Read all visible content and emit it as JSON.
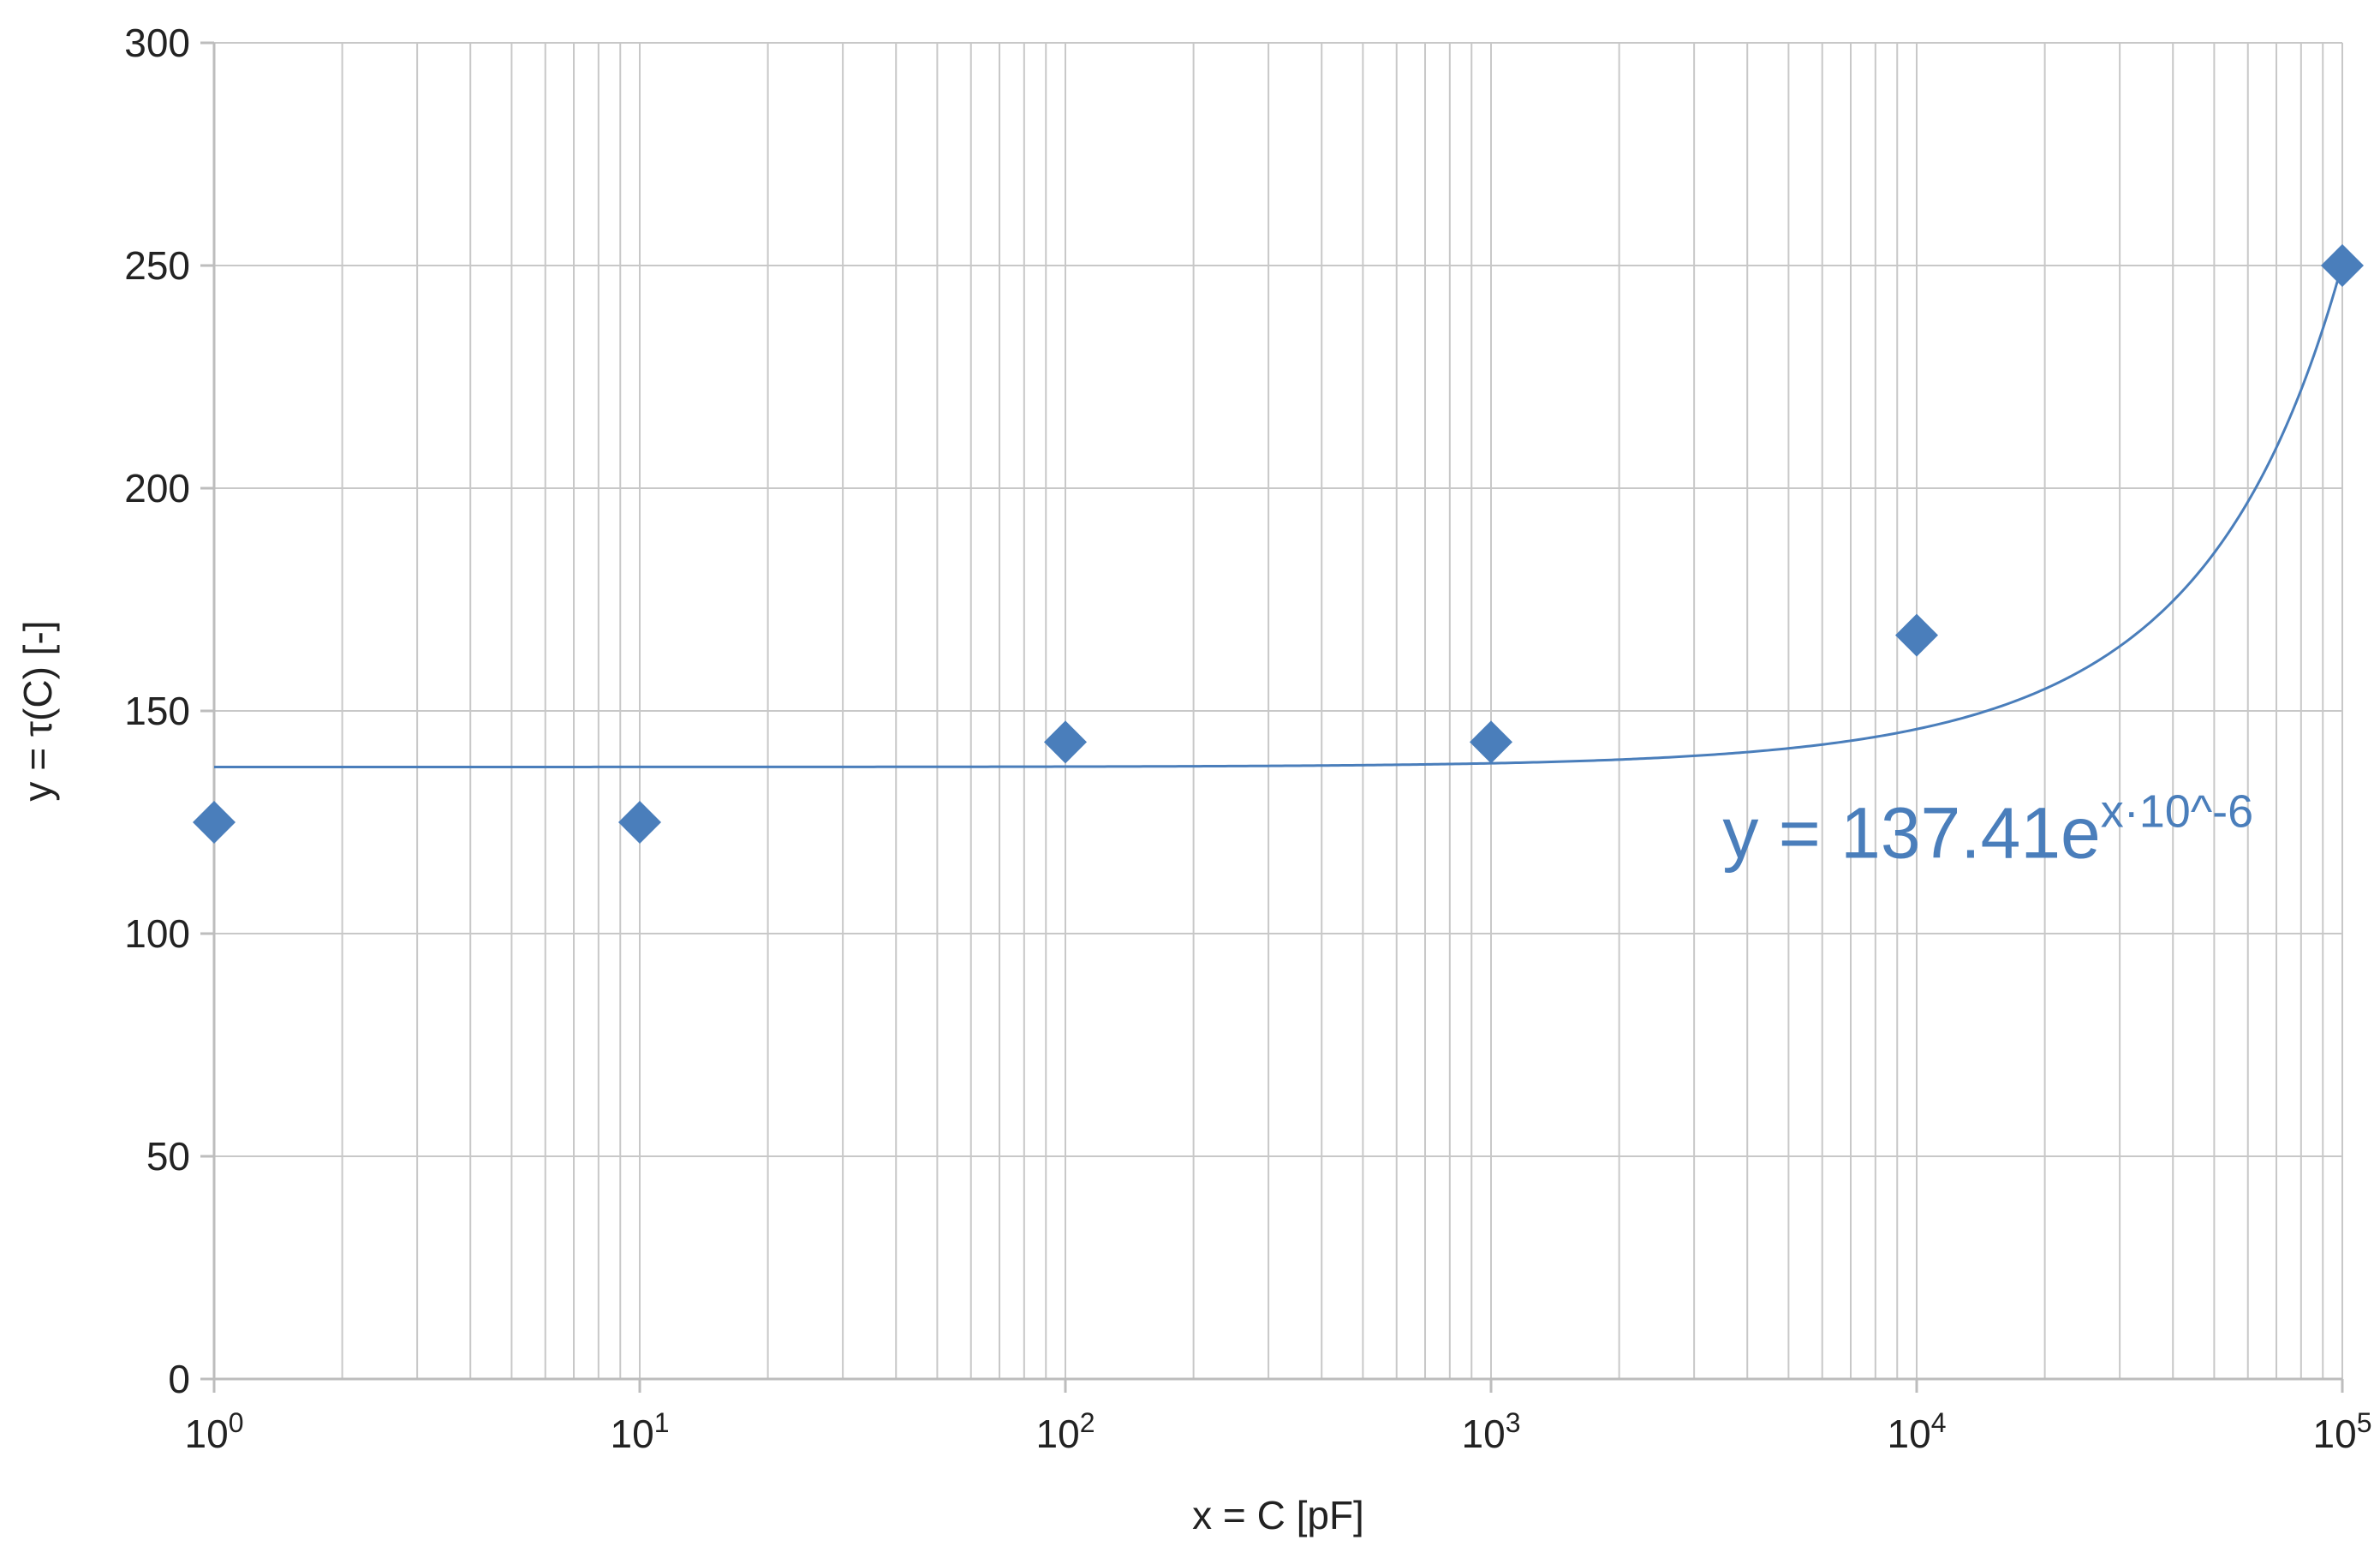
{
  "chart_data": {
    "type": "scatter",
    "x_scale": "log",
    "y_scale": "linear",
    "grid": true,
    "xlabel": "x = C [pF]",
    "ylabel": "y = τ(C) [-]",
    "xlim": [
      1,
      100000
    ],
    "ylim": [
      0,
      300
    ],
    "x_ticks": [
      {
        "value": 1,
        "base": "10",
        "exp": "0"
      },
      {
        "value": 10,
        "base": "10",
        "exp": "1"
      },
      {
        "value": 100,
        "base": "10",
        "exp": "2"
      },
      {
        "value": 1000,
        "base": "10",
        "exp": "3"
      },
      {
        "value": 10000,
        "base": "10",
        "exp": "4"
      },
      {
        "value": 100000,
        "base": "10",
        "exp": "5"
      }
    ],
    "y_ticks": [
      {
        "value": 0,
        "label": "0"
      },
      {
        "value": 50,
        "label": "50"
      },
      {
        "value": 100,
        "label": "100"
      },
      {
        "value": 150,
        "label": "150"
      },
      {
        "value": 200,
        "label": "200"
      },
      {
        "value": 250,
        "label": "250"
      },
      {
        "value": 300,
        "label": "300"
      }
    ],
    "series": [
      {
        "marker": "diamond",
        "color": "#4a7ebb",
        "points": [
          {
            "x": 1,
            "y": 125
          },
          {
            "x": 10,
            "y": 125
          },
          {
            "x": 100,
            "y": 143
          },
          {
            "x": 1000,
            "y": 143
          },
          {
            "x": 10000,
            "y": 167
          },
          {
            "x": 100000,
            "y": 250
          }
        ]
      }
    ],
    "trendline": {
      "type": "exponential",
      "coefficient": 137.41,
      "rate": 6e-06,
      "color": "#4a7ebb"
    },
    "annotation": {
      "text_main": "y = 137.41e",
      "text_sup": "x·10^-6",
      "anchor_x": 3500,
      "anchor_y": 117,
      "color": "#4a7ebb"
    },
    "colors": {
      "grid": "#c8c8c8",
      "axis": "#bdbdbd",
      "text": "#222222"
    }
  }
}
